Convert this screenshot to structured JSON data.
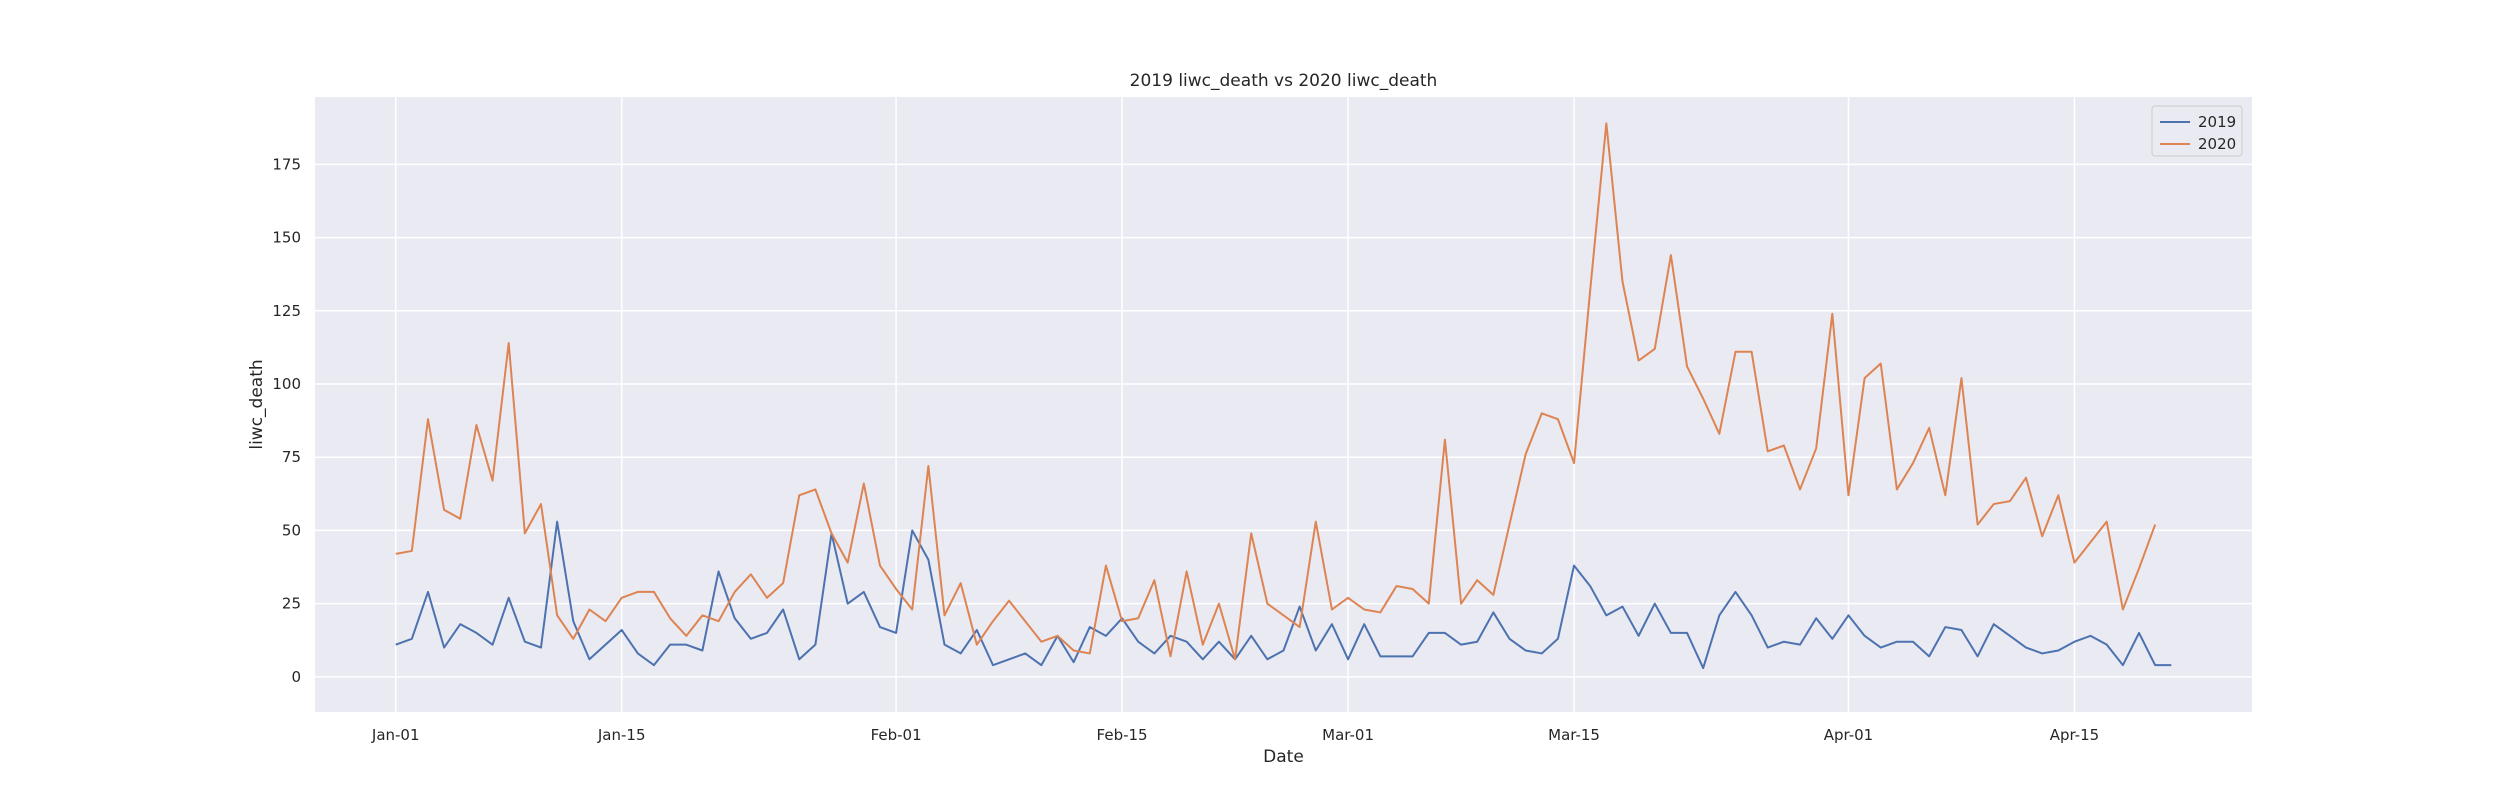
{
  "chart_data": {
    "type": "line",
    "title": "2019 liwc_death vs 2020 liwc_death",
    "xlabel": "Date",
    "ylabel": "liwc_death",
    "ylim": [
      -12,
      198
    ],
    "xlim": [
      -5,
      115
    ],
    "grid": true,
    "legend_position": "top-right",
    "x_ticks": [
      {
        "label": "Jan-01",
        "day": 0
      },
      {
        "label": "Jan-15",
        "day": 14
      },
      {
        "label": "Feb-01",
        "day": 31
      },
      {
        "label": "Feb-15",
        "day": 45
      },
      {
        "label": "Mar-01",
        "day": 59
      },
      {
        "label": "Mar-15",
        "day": 73
      },
      {
        "label": "Apr-01",
        "day": 90
      },
      {
        "label": "Apr-15",
        "day": 104
      }
    ],
    "y_ticks": [
      0,
      25,
      50,
      75,
      100,
      125,
      150,
      175
    ],
    "colors": {
      "2019": "#4c72b0",
      "2020": "#dd8452"
    },
    "series": [
      {
        "name": "2019",
        "values": [
          11,
          13,
          29,
          10,
          18,
          15,
          11,
          27,
          12,
          10,
          53,
          19,
          6,
          11,
          16,
          8,
          4,
          11,
          11,
          9,
          36,
          20,
          13,
          15,
          23,
          6,
          11,
          49,
          25,
          29,
          17,
          15,
          50,
          40,
          11,
          8,
          16,
          4,
          6,
          8,
          4,
          14,
          5,
          17,
          14,
          20,
          12,
          8,
          14,
          12,
          6,
          12,
          6,
          14,
          6,
          9,
          24,
          9,
          18,
          6,
          18,
          7,
          7,
          7,
          15,
          15,
          11,
          12,
          22,
          13,
          9,
          8,
          13,
          38,
          31,
          21,
          24,
          14,
          25,
          15,
          15,
          3,
          21,
          29,
          21,
          10,
          12,
          11,
          20,
          13,
          21,
          14,
          10,
          12,
          12,
          7,
          17,
          16,
          7,
          18,
          14,
          10,
          8,
          9,
          12,
          14,
          11,
          4,
          15,
          4,
          4
        ]
      },
      {
        "name": "2020",
        "values": [
          42,
          43,
          88,
          57,
          54,
          86,
          67,
          114,
          49,
          59,
          21,
          13,
          23,
          19,
          27,
          29,
          29,
          20,
          14,
          21,
          19,
          29,
          35,
          27,
          32,
          62,
          64,
          49,
          39,
          66,
          38,
          30,
          23,
          72,
          21,
          32,
          11,
          19,
          26,
          19,
          12,
          14,
          9,
          8,
          38,
          19,
          20,
          33,
          7,
          36,
          11,
          25,
          6,
          49,
          25,
          21,
          17,
          53,
          23,
          27,
          23,
          22,
          31,
          30,
          25,
          81,
          25,
          33,
          28,
          52,
          76,
          90,
          88,
          73,
          132,
          189,
          135,
          108,
          112,
          144,
          106,
          95,
          83,
          111,
          111,
          77,
          79,
          64,
          78,
          124,
          62,
          102,
          107,
          64,
          73,
          85,
          62,
          102,
          52,
          59,
          60,
          68,
          48,
          62,
          39,
          46,
          53,
          23,
          37,
          52
        ]
      }
    ]
  }
}
